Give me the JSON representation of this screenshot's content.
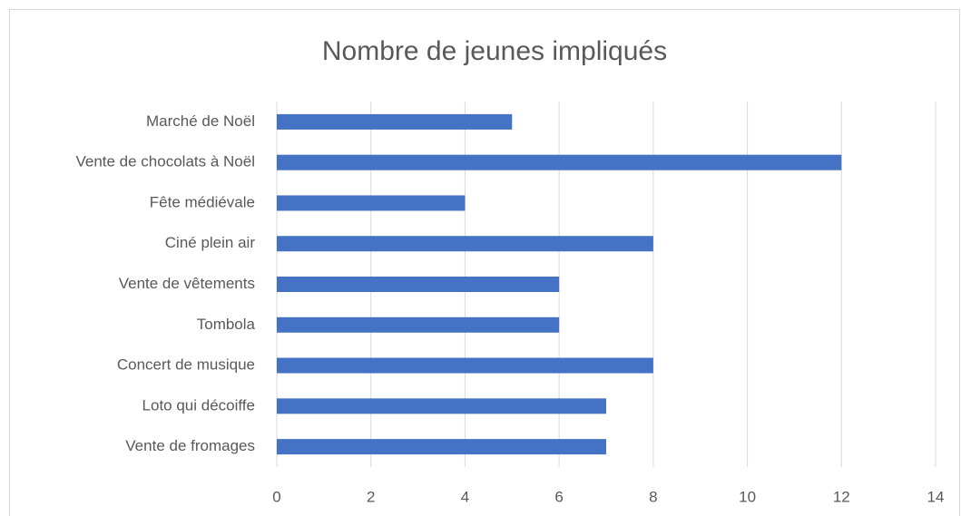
{
  "chart_data": {
    "type": "bar",
    "orientation": "horizontal",
    "title": "Nombre de jeunes impliqués",
    "categories": [
      "Marché de Noël",
      "Vente de chocolats à Noël",
      "Fête médiévale",
      "Ciné plein air",
      "Vente de vêtements",
      "Tombola",
      "Concert de musique",
      "Loto qui décoiffe",
      "Vente de fromages"
    ],
    "values": [
      5,
      12,
      4,
      8,
      6,
      6,
      8,
      7,
      7
    ],
    "color": "#4472c4",
    "xlim": [
      0,
      14
    ],
    "xticks": [
      0,
      2,
      4,
      6,
      8,
      10,
      12,
      14
    ],
    "grid": true
  }
}
